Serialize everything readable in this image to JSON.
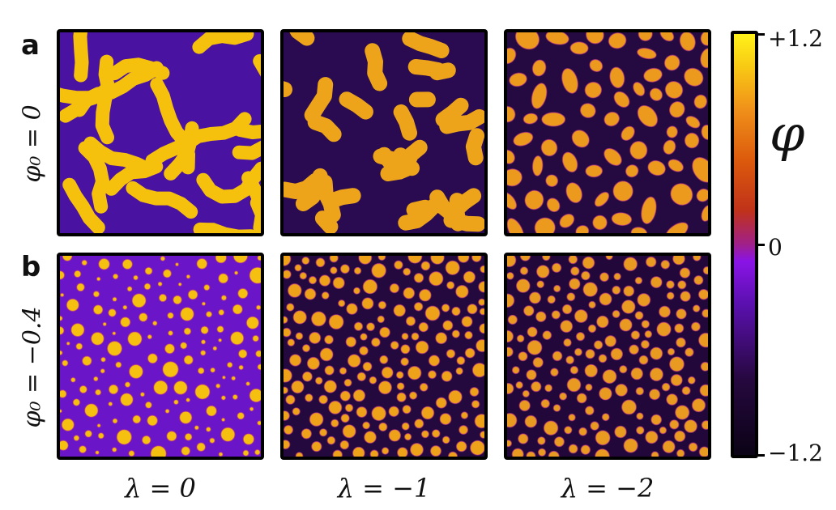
{
  "figure": {
    "panels": [
      {
        "letter": "a",
        "row_label": "φ₀ = 0"
      },
      {
        "letter": "b",
        "row_label": "φ₀ = −0.4"
      }
    ],
    "columns": [
      "λ = 0",
      "λ = −1",
      "λ = −2"
    ],
    "tiles": [
      {
        "name": "tile-a-lambda-0",
        "pattern": "labyrinth",
        "bg": "#4a12a0",
        "fg": "#f6c10c"
      },
      {
        "name": "tile-a-lambda-minus1",
        "pattern": "blobs",
        "bg": "#2a0b52",
        "fg": "#eda41a"
      },
      {
        "name": "tile-a-lambda-minus2",
        "pattern": "ovals",
        "bg": "#240a40",
        "fg": "#ec9a1e"
      },
      {
        "name": "tile-b-lambda-0",
        "pattern": "droplets",
        "bg": "#6a16c8",
        "fg": "#f5c010"
      },
      {
        "name": "tile-b-lambda-minus1",
        "pattern": "droplets-dense",
        "bg": "#24093e",
        "fg": "#eea21a"
      },
      {
        "name": "tile-b-lambda-minus2",
        "pattern": "droplets-dense",
        "bg": "#22083a",
        "fg": "#e99a20"
      }
    ],
    "colorbar": {
      "title": "φ",
      "ticks": [
        {
          "label": "+1.2",
          "value": 1.2
        },
        {
          "label": "0",
          "value": 0
        },
        {
          "label": "−1.2",
          "value": -1.2
        }
      ],
      "range": [
        -1.2,
        1.2
      ]
    }
  }
}
